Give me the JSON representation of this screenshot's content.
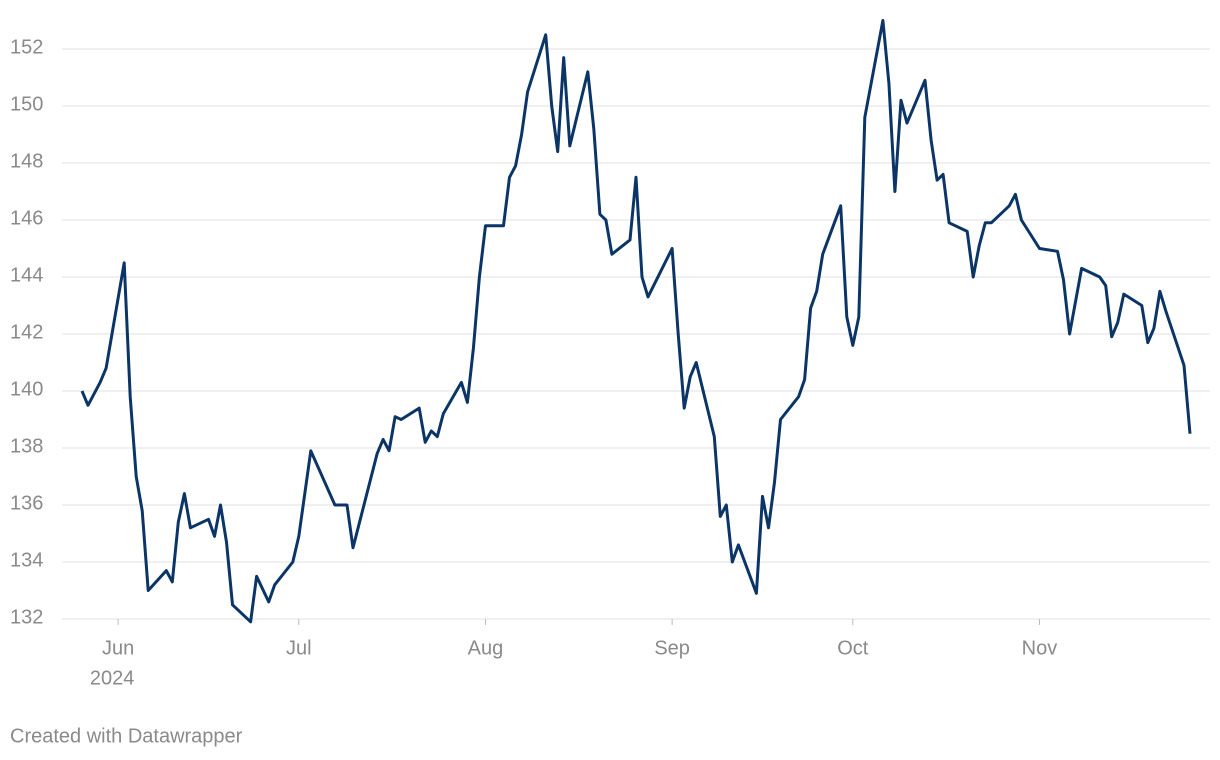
{
  "chart_data": {
    "type": "line",
    "x": [
      -6,
      -5,
      -3,
      -2,
      1,
      2,
      3,
      4,
      5,
      8,
      9,
      10,
      11,
      12,
      15,
      16,
      17,
      18,
      19,
      22,
      23,
      25,
      26,
      29,
      30,
      32,
      36,
      38,
      39,
      43,
      44,
      45,
      46,
      47,
      50,
      51,
      52,
      53,
      54,
      57,
      58,
      59,
      60,
      61,
      64,
      65,
      66,
      67,
      68,
      71,
      72,
      73,
      74,
      75,
      78,
      79,
      80,
      81,
      82,
      85,
      86,
      87,
      88,
      92,
      93,
      94,
      95,
      96,
      99,
      100,
      101,
      102,
      103,
      106,
      107,
      108,
      109,
      110,
      113,
      114,
      115,
      116,
      117,
      120,
      121,
      122,
      123,
      124,
      127,
      128,
      129,
      130,
      131,
      134,
      135,
      136,
      137,
      138,
      141,
      142,
      143,
      144,
      145,
      148,
      149,
      150,
      153,
      156,
      157,
      158,
      160,
      163,
      164,
      165,
      166,
      167,
      170,
      171,
      172,
      173,
      174,
      177,
      178
    ],
    "series": [
      {
        "color": "#0b3566",
        "values": [
          140.0,
          139.5,
          140.3,
          140.8,
          144.5,
          139.8,
          137.0,
          135.8,
          133.0,
          133.7,
          133.3,
          135.4,
          136.4,
          135.2,
          135.5,
          134.9,
          136.0,
          134.7,
          132.5,
          131.9,
          133.5,
          132.6,
          133.2,
          134.0,
          134.9,
          137.9,
          136.0,
          136.0,
          134.5,
          137.8,
          138.3,
          137.9,
          139.1,
          139.0,
          139.4,
          138.2,
          138.6,
          138.4,
          139.2,
          140.3,
          139.6,
          141.5,
          144.0,
          145.8,
          145.8,
          147.5,
          147.9,
          149.0,
          150.5,
          152.5,
          150.0,
          148.4,
          151.7,
          148.6,
          151.2,
          149.2,
          146.2,
          146.0,
          144.8,
          145.3,
          147.5,
          144.0,
          143.3,
          145.0,
          142.0,
          139.4,
          140.5,
          141.0,
          138.4,
          135.6,
          136.0,
          134.0,
          134.6,
          132.9,
          136.3,
          135.2,
          136.8,
          139.0,
          139.8,
          140.4,
          142.9,
          143.5,
          144.8,
          146.5,
          142.6,
          141.6,
          142.6,
          149.6,
          153.0,
          150.8,
          147.0,
          150.2,
          149.4,
          150.9,
          148.8,
          147.4,
          147.6,
          145.9,
          145.6,
          144.0,
          145.1,
          145.9,
          145.9,
          146.5,
          146.9,
          146.0,
          145.0,
          144.9,
          143.9,
          142.0,
          144.3,
          144.0,
          143.7,
          141.9,
          142.4,
          143.4,
          143.0,
          141.7,
          142.2,
          143.5,
          142.8,
          140.9,
          138.5
        ]
      }
    ],
    "xlim": [
      -6,
      178
    ],
    "xticks": [
      {
        "value": 0,
        "label": "Jun"
      },
      {
        "value": 30,
        "label": "Jul"
      },
      {
        "value": 61,
        "label": "Aug"
      },
      {
        "value": 92,
        "label": "Sep"
      },
      {
        "value": 122,
        "label": "Oct"
      },
      {
        "value": 153,
        "label": "Nov"
      }
    ],
    "x_year_label": "2024",
    "ylim": [
      132,
      152
    ],
    "yticks": [
      132,
      134,
      136,
      138,
      140,
      142,
      144,
      146,
      148,
      150,
      152
    ],
    "grid": true,
    "source": "Created with Datawrapper"
  }
}
